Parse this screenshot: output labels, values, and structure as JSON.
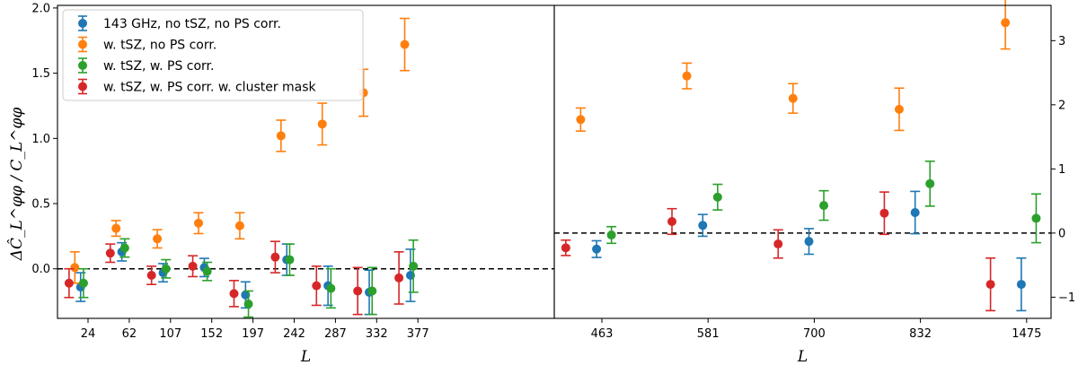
{
  "chart_data": {
    "type": "scatter",
    "subtype": "errorbar",
    "ylabel": "ΔĈ_L^φφ / C_L^φφ",
    "legend": {
      "location": "top-left",
      "entries": [
        {
          "label": "143 GHz, no tSZ, no PS corr.",
          "color": "#1f77b4"
        },
        {
          "label": "w. tSZ, no PS corr.",
          "color": "#ff7f0e"
        },
        {
          "label": "w. tSZ, w. PS corr.",
          "color": "#2ca02c"
        },
        {
          "label": "w. tSZ, w. PS corr. w. cluster mask",
          "color": "#d62728"
        }
      ]
    },
    "panels": [
      {
        "xlabel": "L",
        "categories": [
          "24",
          "62",
          "107",
          "152",
          "197",
          "242",
          "287",
          "332",
          "377"
        ],
        "ylim": [
          -0.38,
          2.02
        ],
        "yticks": [
          0.0,
          0.5,
          1.0,
          1.5,
          2.0
        ],
        "ytick_labels": [
          "0.0",
          "0.5",
          "1.0",
          "1.5",
          "2.0"
        ],
        "ytick_side": "left",
        "reference_line": 0.0,
        "series": [
          {
            "name": "143 GHz, no tSZ, no PS corr.",
            "color": "#1f77b4",
            "offset": -0.18,
            "values": [
              -0.14,
              0.13,
              -0.03,
              0.01,
              -0.2,
              0.07,
              -0.13,
              -0.18,
              -0.05
            ],
            "errors": [
              0.11,
              0.07,
              0.07,
              0.07,
              0.1,
              0.12,
              0.15,
              0.17,
              0.2
            ]
          },
          {
            "name": "w. tSZ, no PS corr.",
            "color": "#ff7f0e",
            "offset": -0.32,
            "values": [
              0.01,
              0.31,
              0.23,
              0.35,
              0.33,
              1.02,
              1.11,
              1.35,
              1.72
            ],
            "errors": [
              0.12,
              0.06,
              0.07,
              0.08,
              0.1,
              0.12,
              0.16,
              0.18,
              0.2
            ]
          },
          {
            "name": "w. tSZ, w. PS corr.",
            "color": "#2ca02c",
            "offset": -0.11,
            "values": [
              -0.11,
              0.16,
              0.0,
              -0.02,
              -0.27,
              0.07,
              -0.15,
              -0.17,
              0.02
            ],
            "errors": [
              0.11,
              0.07,
              0.07,
              0.07,
              0.1,
              0.12,
              0.15,
              0.18,
              0.2
            ]
          },
          {
            "name": "w. tSZ, w. PS corr. w. cluster mask",
            "color": "#d62728",
            "offset": -0.46,
            "values": [
              -0.11,
              0.12,
              -0.05,
              0.02,
              -0.19,
              0.09,
              -0.13,
              -0.17,
              -0.07
            ],
            "errors": [
              0.11,
              0.07,
              0.07,
              0.08,
              0.1,
              0.12,
              0.15,
              0.18,
              0.2
            ]
          }
        ]
      },
      {
        "xlabel": "L",
        "categories": [
          "463",
          "581",
          "700",
          "832",
          "1475"
        ],
        "ylim": [
          -1.33,
          3.55
        ],
        "yticks": [
          -1,
          0,
          1,
          2,
          3
        ],
        "ytick_labels": [
          "−1",
          "0",
          "1",
          "2",
          "3"
        ],
        "ytick_side": "right",
        "reference_line": 0.0,
        "series": [
          {
            "name": "143 GHz, no tSZ, no PS corr.",
            "color": "#1f77b4",
            "offset": -0.05,
            "values": [
              -0.25,
              0.12,
              -0.13,
              0.32,
              -0.8
            ],
            "errors": [
              0.13,
              0.17,
              0.2,
              0.33,
              0.41
            ]
          },
          {
            "name": "w. tSZ, no PS corr.",
            "color": "#ff7f0e",
            "offset": -0.2,
            "values": [
              1.77,
              2.45,
              2.1,
              1.93,
              3.28
            ],
            "errors": [
              0.18,
              0.2,
              0.23,
              0.33,
              0.41
            ]
          },
          {
            "name": "w. tSZ, w. PS corr.",
            "color": "#2ca02c",
            "offset": 0.09,
            "values": [
              -0.03,
              0.56,
              0.43,
              0.77,
              0.23
            ],
            "errors": [
              0.13,
              0.2,
              0.23,
              0.35,
              0.38
            ]
          },
          {
            "name": "w. tSZ, w. PS corr. w. cluster mask",
            "color": "#d62728",
            "offset": -0.34,
            "values": [
              -0.23,
              0.18,
              -0.17,
              0.31,
              -0.8
            ],
            "errors": [
              0.12,
              0.2,
              0.22,
              0.33,
              0.41
            ]
          }
        ]
      }
    ]
  }
}
